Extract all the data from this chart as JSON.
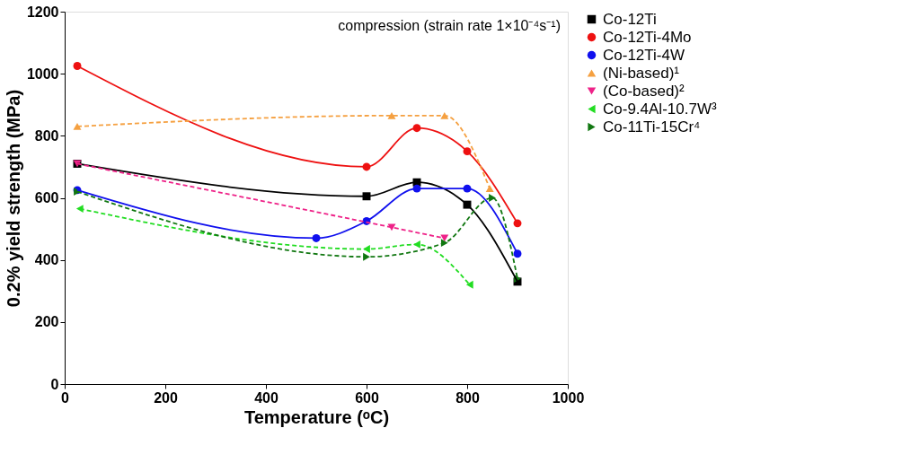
{
  "chart_data": {
    "type": "line",
    "xlabel": "Temperature (ᵒC)",
    "ylabel": "0.2% yield strength (MPa)",
    "annotations": [
      "compression (strain rate 1×10⁻⁴s⁻¹)"
    ],
    "xlim": [
      0,
      1000
    ],
    "xticks": [
      0,
      200,
      400,
      600,
      800,
      1000
    ],
    "ylim": [
      0,
      1200
    ],
    "yticks": [
      0,
      200,
      400,
      600,
      800,
      1000,
      1200
    ],
    "grid": false,
    "legend": "right",
    "series": [
      {
        "name": "Co-12Ti",
        "color": "#000000",
        "marker": "square",
        "line_style": "solid",
        "x": [
          25,
          600,
          700,
          800,
          900
        ],
        "values": [
          710,
          605,
          650,
          578,
          330
        ]
      },
      {
        "name": "Co-12Ti-4Mo",
        "color": "#ee1111",
        "marker": "circle",
        "line_style": "solid",
        "x": [
          25,
          600,
          700,
          800,
          900
        ],
        "values": [
          1025,
          700,
          825,
          750,
          518
        ]
      },
      {
        "name": "Co-12Ti-4W",
        "color": "#1010ee",
        "marker": "circle",
        "line_style": "solid",
        "x": [
          25,
          500,
          600,
          700,
          800,
          900
        ],
        "values": [
          625,
          470,
          525,
          630,
          630,
          420
        ]
      },
      {
        "name": "(Ni-based)¹",
        "color": "#f5a040",
        "marker": "triangle-up",
        "line_style": "dashed",
        "x": [
          25,
          650,
          755,
          845
        ],
        "values": [
          830,
          865,
          865,
          630
        ]
      },
      {
        "name": "(Co-based)²",
        "color": "#ee2288",
        "marker": "triangle-down",
        "line_style": "dashed",
        "x": [
          25,
          650,
          755
        ],
        "values": [
          710,
          505,
          470
        ]
      },
      {
        "name": "Co-9.4Al-10.7W³",
        "color": "#22dd22",
        "marker": "triangle-left",
        "line_style": "dashed",
        "x": [
          30,
          600,
          700,
          805
        ],
        "values": [
          565,
          435,
          450,
          320
        ]
      },
      {
        "name": "Co-11Ti-15Cr⁴",
        "color": "#117711",
        "marker": "triangle-right",
        "line_style": "dashed",
        "x": [
          25,
          600,
          755,
          850,
          900
        ],
        "values": [
          620,
          410,
          455,
          600,
          340
        ]
      }
    ]
  }
}
